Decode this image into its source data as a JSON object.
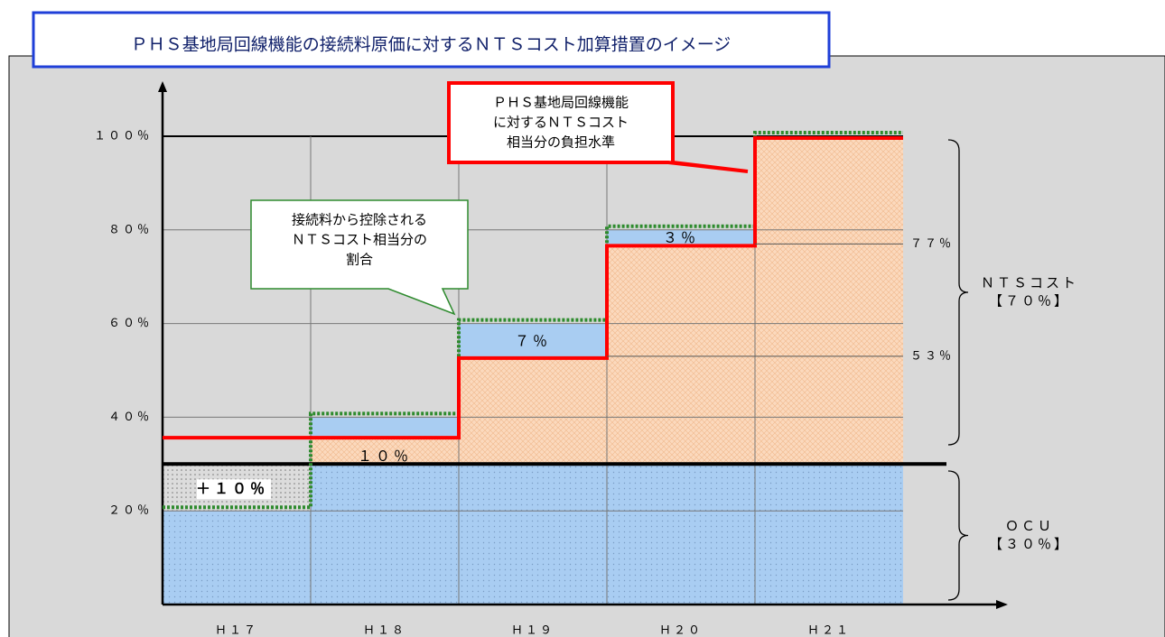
{
  "chart_data": {
    "type": "step",
    "title": "ＰＨＳ基地局回線機能の接続料原価に対するＮＴＳコスト加算措置のイメージ",
    "categories": [
      "Ｈ１７",
      "Ｈ１８",
      "Ｈ１９",
      "Ｈ２０",
      "Ｈ２１"
    ],
    "ylim": [
      0,
      100
    ],
    "yticks": [
      {
        "value": 20,
        "label": "２０％"
      },
      {
        "value": 40,
        "label": "４０％"
      },
      {
        "value": 60,
        "label": "６０％"
      },
      {
        "value": 80,
        "label": "８０％"
      },
      {
        "value": 100,
        "label": "１００％"
      }
    ],
    "grid": true,
    "ocu_level": 30,
    "series": [
      {
        "name": "接続料から控除されるＮＴＳコスト相当分の割合",
        "color": "#2e8b2e",
        "values": [
          20,
          40,
          60,
          80,
          100
        ]
      },
      {
        "name": "ＰＨＳ基地局回線機能に対するＮＴＳコスト相当分の負担水準",
        "color": "#ff0000",
        "values": [
          36,
          36,
          53,
          77,
          100
        ],
        "value_labels": [
          null,
          null,
          "５３％",
          "７７％",
          null
        ]
      }
    ],
    "step_labels": [
      "＋１０％",
      "１０％",
      "７％",
      "３％",
      null
    ],
    "callouts": [
      {
        "lines": [
          "ＰＨＳ基地局回線機能",
          "に対するＮＴＳコスト",
          "相当分の負担水準"
        ]
      },
      {
        "lines": [
          "接続料から控除される",
          "ＮＴＳコスト相当分の",
          "割合"
        ]
      }
    ],
    "braces": [
      {
        "lines": [
          "ＮＴＳコスト",
          "【７０％】"
        ]
      },
      {
        "lines": [
          "ＯＣＵ",
          "【３０％】"
        ]
      }
    ]
  }
}
